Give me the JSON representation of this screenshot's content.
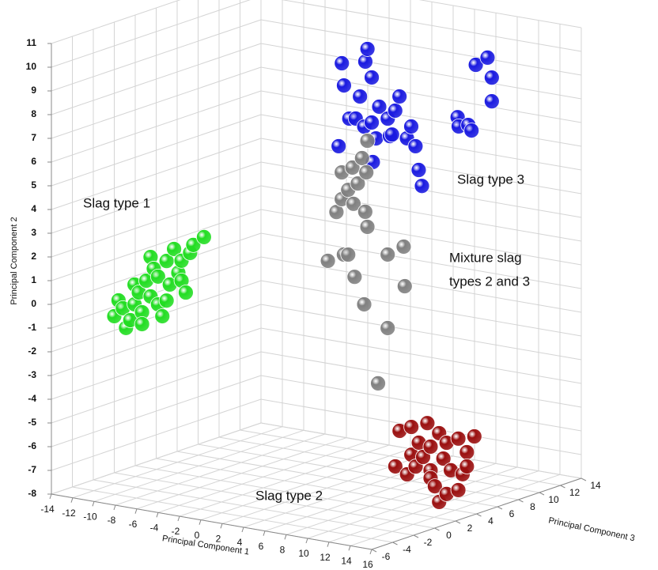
{
  "chart_data": {
    "type": "scatter3d",
    "xlabel": "Principal Component 1",
    "ylabel": "Principal Component 2",
    "zlabel": "Principal Component 3",
    "xlim": [
      -14,
      16
    ],
    "ylim": [
      -8,
      11
    ],
    "zlim": [
      -6,
      14
    ],
    "xticks": [
      -14,
      -12,
      -10,
      -8,
      -6,
      -4,
      -2,
      0,
      2,
      4,
      6,
      8,
      10,
      12,
      14,
      16
    ],
    "yticks": [
      -8,
      -7,
      -6,
      -5,
      -4,
      -3,
      -2,
      -1,
      0,
      1,
      2,
      3,
      4,
      5,
      6,
      7,
      8,
      9,
      10,
      11
    ],
    "zticks": [
      -6,
      -4,
      -2,
      0,
      2,
      4,
      6,
      8,
      10,
      12,
      14
    ],
    "grid": true,
    "annotations": [
      "Slag type 1",
      "Slag type 3",
      "Mixture slag",
      "types 2 and 3",
      "Slag type 2"
    ],
    "series": [
      {
        "color": "#22dd22",
        "x": [
          -14.0,
          -13.2,
          -12.5,
          -13.6,
          -12.1,
          -11.4,
          -11.7,
          -10.6,
          -9.9,
          -9.1,
          -11.0,
          -9.9,
          -8.8,
          -8.0,
          -10.3,
          -9.1,
          -7.7,
          -6.9,
          -8.4,
          -6.6,
          -5.6,
          -12.9,
          -11.4,
          -9.5,
          -7.7,
          -7.3,
          -10.6,
          -12.1
        ],
        "y": [
          -1.4,
          -1.0,
          -1.45,
          -0.7,
          -0.75,
          -1.03,
          -0.22,
          -0.3,
          -0.58,
          -0.36,
          0.33,
          0.59,
          0.34,
          0.9,
          0.89,
          1.31,
          1.43,
          1.82,
          1.87,
          2.18,
          2.59,
          -1.81,
          -1.53,
          -1.05,
          0.59,
          0.12,
          1.36,
          0.08
        ],
        "z": [
          0,
          0,
          0,
          0,
          0,
          0,
          0,
          0,
          0,
          0,
          0,
          0,
          0,
          0,
          0,
          0,
          0,
          0,
          0,
          0,
          0,
          0,
          0,
          0,
          0,
          0,
          0,
          0
        ]
      },
      {
        "color": "#1a1ae0",
        "x": [
          -2.5,
          -0.1,
          -0.3,
          0.3,
          -2.3,
          -0.8,
          1.0,
          2.5,
          2.9,
          1.8,
          0.3,
          -1.2,
          -0.4,
          0.7,
          2.2,
          4.0,
          4.4,
          3.6,
          -2.8,
          0.4,
          4.7,
          5.0,
          2.0,
          -1.8,
          7.1,
          8.2,
          8.6,
          8.6,
          5.5,
          6.4,
          6.7,
          5.4
        ],
        "y": [
          8.66,
          9.45,
          8.9,
          8.28,
          7.74,
          7.39,
          7.1,
          7.05,
          7.68,
          6.66,
          6.38,
          6.43,
          6.15,
          5.74,
          6.02,
          6.5,
          5.7,
          5.97,
          5.14,
          4.72,
          4.72,
          4.07,
          5.94,
          6.38,
          8.89,
          9.28,
          8.47,
          7.47,
          6.17,
          6.3,
          6.09,
          6.55
        ],
        "z": [
          10,
          10,
          10,
          10,
          10,
          10,
          10,
          10,
          10,
          10,
          10,
          10,
          10,
          10,
          10,
          10,
          10,
          10,
          10,
          10,
          10,
          10,
          10,
          10,
          13,
          13,
          13,
          13,
          13,
          13,
          13,
          13
        ]
      },
      {
        "color": "#808080",
        "x": [
          4.8,
          4.3,
          4.7,
          3.4,
          2.4,
          3.9,
          2.4,
          3.5,
          4.6,
          1.9,
          4.8,
          2.6,
          1.1,
          3.0,
          6.7,
          8.2,
          3.6,
          8.3,
          4.5,
          6.7,
          5.8,
          3.0
        ],
        "y": [
          6.71,
          5.94,
          5.37,
          5.47,
          5.19,
          4.84,
          4.06,
          3.95,
          3.7,
          3.48,
          3.08,
          1.74,
          1.36,
          1.77,
          2.06,
          2.51,
          0.88,
          0.85,
          -0.21,
          -1.04,
          -3.44,
          4.5
        ],
        "z": [
          5,
          5,
          5,
          5,
          5,
          5,
          5,
          5,
          5,
          5,
          5,
          5,
          5,
          5,
          5,
          5,
          5,
          5,
          5,
          5,
          5,
          5
        ]
      },
      {
        "color": "#9a0f0f",
        "x": [
          8.8,
          9.9,
          11.4,
          12.5,
          10.6,
          11.7,
          13.2,
          14.3,
          15.8,
          15.1,
          12.9,
          11.0,
          9.9,
          8.4,
          9.5,
          11.7,
          13.6,
          14.7,
          12.1,
          13.2,
          14.3,
          12.5,
          11.7,
          10.3,
          15.1
        ],
        "y": [
          -5.06,
          -4.81,
          -4.53,
          -4.87,
          -5.42,
          -5.5,
          -5.22,
          -4.96,
          -4.75,
          -5.47,
          -5.91,
          -5.99,
          -5.98,
          -6.59,
          -6.84,
          -6.5,
          -6.35,
          -6.43,
          -7.14,
          -7.38,
          -7.13,
          -7.77,
          -6.83,
          -6.45,
          -6.07
        ],
        "z": [
          4,
          4,
          4,
          4,
          4,
          4,
          4,
          4,
          4,
          4,
          4,
          4,
          4,
          4,
          4,
          4,
          4,
          4,
          4,
          4,
          4,
          4,
          4,
          4,
          4
        ]
      }
    ]
  }
}
